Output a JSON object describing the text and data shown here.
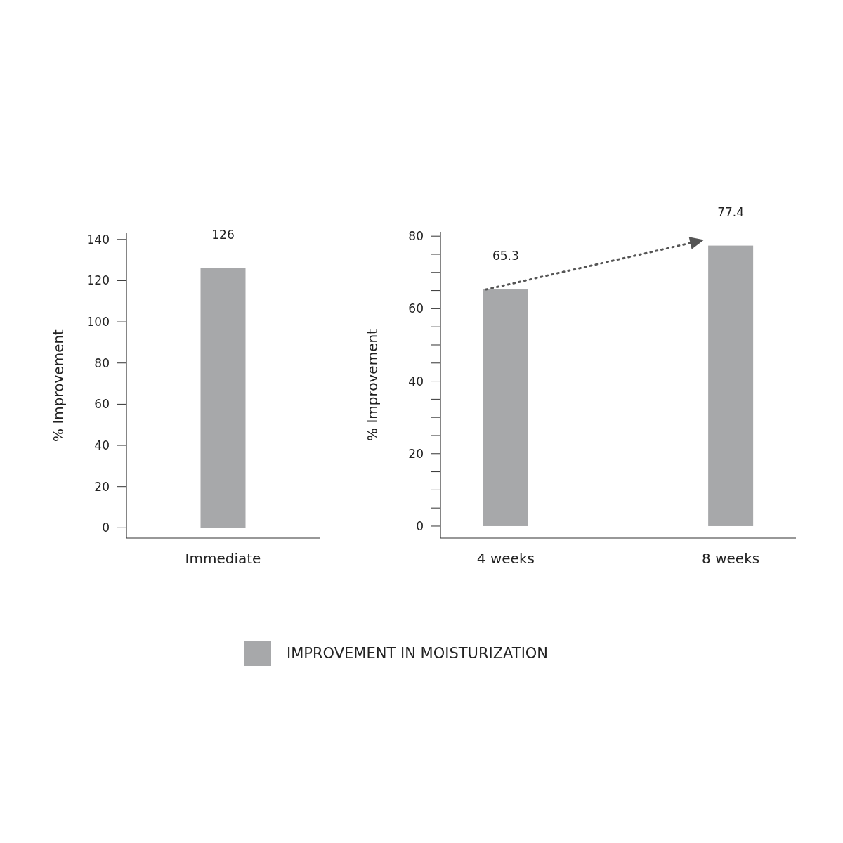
{
  "chart_data": [
    {
      "type": "bar",
      "categories": [
        "Immediate"
      ],
      "ylabel": "% Improvement",
      "ylim": [
        -5,
        143
      ],
      "yticks": [
        0,
        20,
        40,
        60,
        80,
        100,
        120,
        140
      ],
      "data_labels": true,
      "series": [
        {
          "color": "#a7a8aa",
          "values": [
            126
          ]
        }
      ]
    },
    {
      "type": "bar",
      "categories": [
        "4 weeks",
        "8 weeks"
      ],
      "ylabel": "% Improvement",
      "ylim": [
        -3.3,
        81.2
      ],
      "yticks": [
        0,
        {
          "value": 5,
          "label": null
        },
        {
          "value": 10,
          "label": null
        },
        {
          "value": 15,
          "label": null
        },
        20,
        {
          "value": 25,
          "label": null
        },
        {
          "value": 30,
          "label": null
        },
        {
          "value": 35,
          "label": null
        },
        40,
        {
          "value": 45,
          "label": null
        },
        {
          "value": 50,
          "label": null
        },
        {
          "value": 55,
          "label": null
        },
        60,
        {
          "value": 65,
          "label": null
        },
        {
          "value": 70,
          "label": null
        },
        {
          "value": 75,
          "label": null
        },
        80
      ],
      "data_labels": true,
      "legend": "bottom",
      "series": [
        {
          "name": "IMPROVEMENT IN MOISTURIZATION",
          "color": "#a7a8aa",
          "values": [
            65.3,
            77.4
          ]
        }
      ]
    }
  ]
}
